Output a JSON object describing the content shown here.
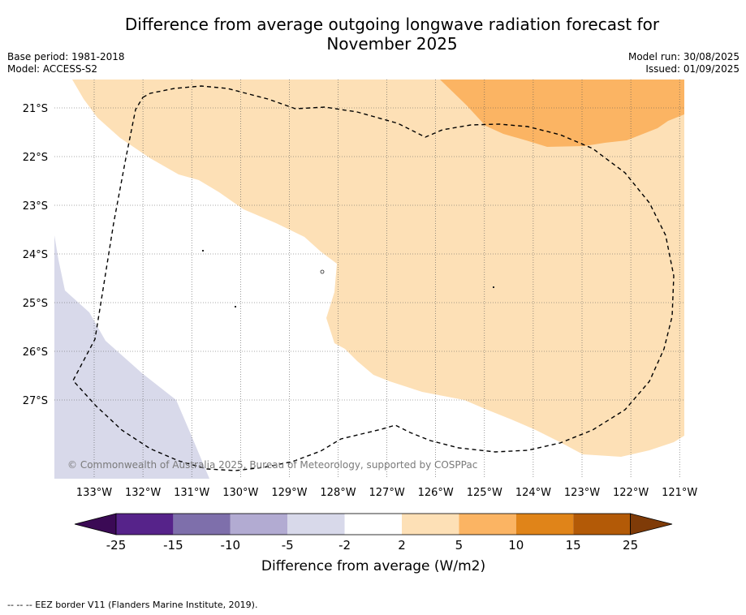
{
  "title_line1": "Difference from average outgoing longwave radiation forecast for",
  "title_line2": "November 2025",
  "base_period": "Base period: 1981-2018",
  "model": "Model: ACCESS-S2",
  "model_run": "Model run: 30/08/2025",
  "issued": "Issued: 01/09/2025",
  "copyright": "© Commonwealth of Australia 2025, Bureau of Meteorology, supported by COSPPac",
  "footnote": "--  --  -- EEZ border V11 (Flanders Marine Institute, 2019).",
  "map": {
    "lon_labels": [
      "133°W",
      "132°W",
      "131°W",
      "130°W",
      "129°W",
      "128°W",
      "127°W",
      "126°W",
      "125°W",
      "124°W",
      "123°W",
      "122°W",
      "121°W"
    ],
    "lat_labels": [
      "21°S",
      "22°S",
      "23°S",
      "24°S",
      "25°S",
      "26°S",
      "27°S"
    ],
    "colors": {
      "light_orange": "#fde0b6",
      "orange": "#fbb463",
      "light_purple": "#d8d9ea",
      "eez_line": "#000000"
    }
  },
  "legend": {
    "title": "Difference from average (W/m2)",
    "ticks": [
      "-25",
      "-15",
      "-10",
      "-5",
      "-2",
      "2",
      "5",
      "10",
      "15",
      "25"
    ],
    "colors": [
      "#3b0a55",
      "#56238a",
      "#7e6fab",
      "#b2abd2",
      "#d8d9ea",
      "#ffffff",
      "#fde0b6",
      "#fbb463",
      "#e08419",
      "#b35a07",
      "#7f3b08"
    ]
  }
}
